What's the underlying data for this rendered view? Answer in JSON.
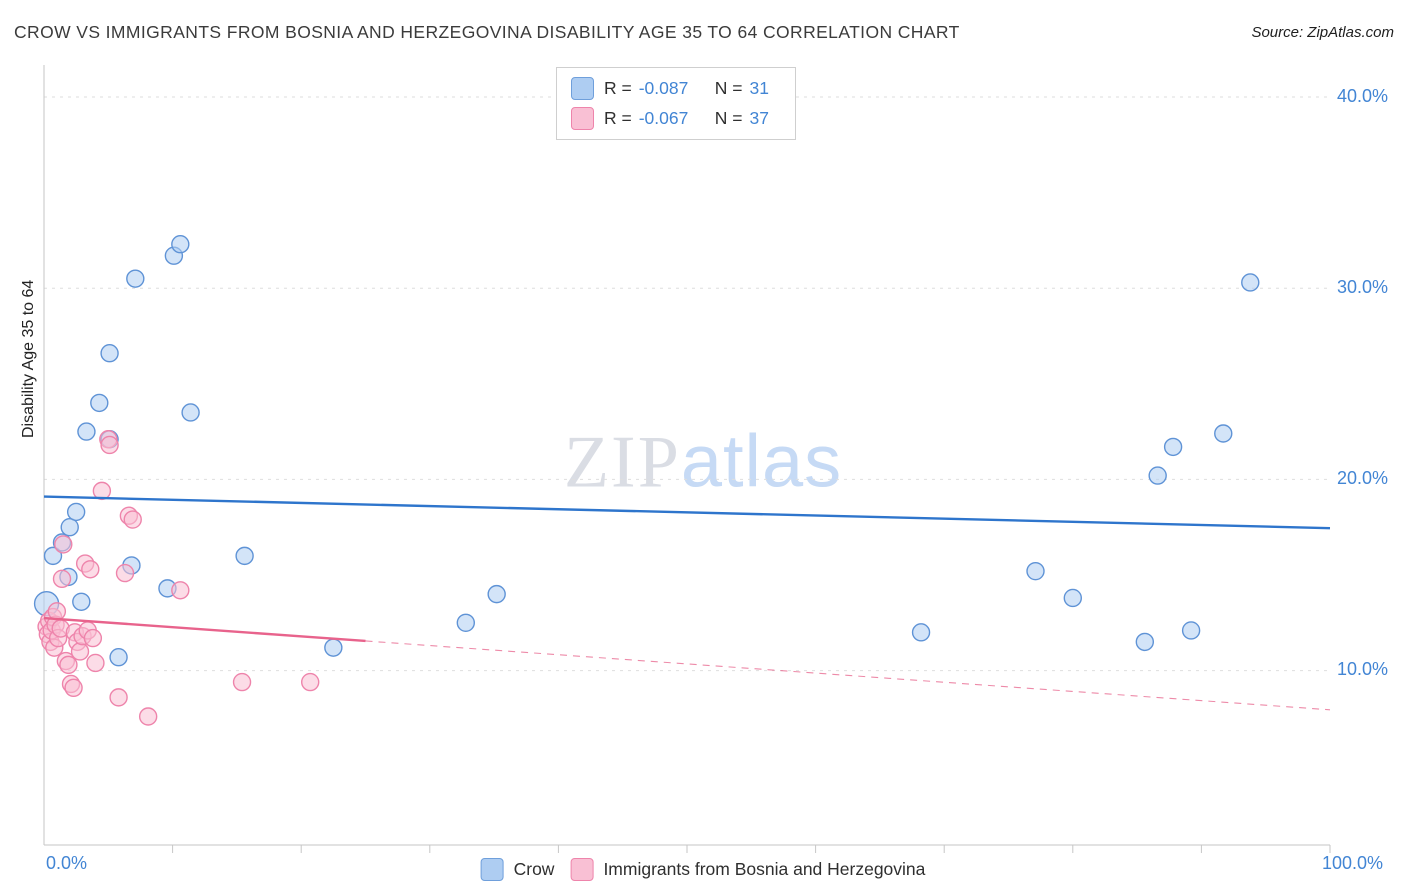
{
  "header": {
    "title": "CROW VS IMMIGRANTS FROM BOSNIA AND HERZEGOVINA DISABILITY AGE 35 TO 64 CORRELATION CHART",
    "source": "Source: ZipAtlas.com"
  },
  "watermark": {
    "zip": "ZIP",
    "atlas": "atlas"
  },
  "legend_box": {
    "series": [
      {
        "r_label": "R =",
        "r_value": "-0.087",
        "n_label": "N =",
        "n_value": "31",
        "swatch": {
          "fill": "#aecdf2",
          "stroke": "#6f9fdb"
        }
      },
      {
        "r_label": "R =",
        "r_value": "-0.067",
        "n_label": "N =",
        "n_value": "37",
        "swatch": {
          "fill": "#f9c0d4",
          "stroke": "#ee84ab"
        }
      }
    ]
  },
  "axes": {
    "y_label": "Disability Age 35 to 64",
    "y_ticks": [
      "40.0%",
      "30.0%",
      "20.0%",
      "10.0%"
    ],
    "x_min_label": "0.0%",
    "x_max_label": "100.0%"
  },
  "bottom_legend": {
    "items": [
      {
        "label": "Crow",
        "swatch": {
          "fill": "#aecdf2",
          "stroke": "#6f9fdb"
        }
      },
      {
        "label": "Immigrants from Bosnia and Herzegovina",
        "swatch": {
          "fill": "#f9c0d4",
          "stroke": "#ee84ab"
        }
      }
    ]
  },
  "chart_data": {
    "type": "scatter",
    "title": "Crow vs Immigrants from Bosnia and Herzegovina Disability Age 35 to 64",
    "xlabel_min": "0.0%",
    "xlabel_max": "100.0%",
    "ylabel": "Disability Age 35 to 64",
    "x_range": [
      0,
      100
    ],
    "y_range": [
      0,
      42
    ],
    "x_tick_step": 10,
    "grid_y_values": [
      10,
      20,
      30,
      40
    ],
    "grid_on": true,
    "legend_position": "bottom",
    "series": [
      {
        "name": "Crow",
        "r": -0.087,
        "n": 31,
        "marker_fill": "#aecdf2",
        "marker_stroke": "#5f93d6",
        "trend_color": "#2e75cc",
        "trend": {
          "x1": 0,
          "y1": 19.1,
          "x2": 100,
          "y2": 17.45
        },
        "points": [
          [
            0.2,
            13.5,
            12
          ],
          [
            0.7,
            16.0
          ],
          [
            1.4,
            16.7
          ],
          [
            1.9,
            14.9
          ],
          [
            2.0,
            17.5
          ],
          [
            2.5,
            18.3
          ],
          [
            2.9,
            13.6
          ],
          [
            3.3,
            22.5
          ],
          [
            4.3,
            24.0
          ],
          [
            5.1,
            26.6
          ],
          [
            5.1,
            22.1
          ],
          [
            5.8,
            10.7
          ],
          [
            6.8,
            15.5
          ],
          [
            7.1,
            30.5
          ],
          [
            9.6,
            14.3
          ],
          [
            10.1,
            31.7
          ],
          [
            10.6,
            32.3
          ],
          [
            11.4,
            23.5
          ],
          [
            15.6,
            16.0
          ],
          [
            22.5,
            11.2
          ],
          [
            32.8,
            12.5
          ],
          [
            35.2,
            14.0
          ],
          [
            68.2,
            12.0
          ],
          [
            77.1,
            15.2
          ],
          [
            80.0,
            13.8
          ],
          [
            85.6,
            11.5
          ],
          [
            86.6,
            20.2
          ],
          [
            87.8,
            21.7
          ],
          [
            89.2,
            12.1
          ],
          [
            91.7,
            22.4
          ],
          [
            93.8,
            30.3
          ]
        ]
      },
      {
        "name": "Immigrants from Bosnia and Herzegovina",
        "r": -0.067,
        "n": 37,
        "marker_fill": "#f9c0d4",
        "marker_stroke": "#ee84ab",
        "trend_color": "#e8638c",
        "trend": {
          "x1": 0,
          "y1": 12.75,
          "x2": 100,
          "y2": 7.95,
          "solid_until": 25
        },
        "points": [
          [
            0.2,
            12.3
          ],
          [
            0.3,
            11.9
          ],
          [
            0.4,
            12.6
          ],
          [
            0.5,
            11.5
          ],
          [
            0.6,
            12.1
          ],
          [
            0.7,
            12.8
          ],
          [
            0.8,
            11.2
          ],
          [
            0.9,
            12.4
          ],
          [
            1.0,
            13.1
          ],
          [
            1.1,
            11.7
          ],
          [
            1.3,
            12.2
          ],
          [
            1.4,
            14.8
          ],
          [
            1.5,
            16.6
          ],
          [
            1.7,
            10.5
          ],
          [
            1.9,
            10.3
          ],
          [
            2.1,
            9.3
          ],
          [
            2.3,
            9.1
          ],
          [
            2.4,
            12.0
          ],
          [
            2.6,
            11.5
          ],
          [
            2.8,
            11.0
          ],
          [
            3.0,
            11.8
          ],
          [
            3.2,
            15.6
          ],
          [
            3.4,
            12.1
          ],
          [
            3.6,
            15.3
          ],
          [
            3.8,
            11.7
          ],
          [
            4.0,
            10.4
          ],
          [
            4.5,
            19.4
          ],
          [
            5.0,
            22.1
          ],
          [
            5.1,
            21.8
          ],
          [
            5.8,
            8.6
          ],
          [
            6.3,
            15.1
          ],
          [
            6.6,
            18.1
          ],
          [
            6.9,
            17.9
          ],
          [
            8.1,
            7.6
          ],
          [
            10.6,
            14.2
          ],
          [
            15.4,
            9.4
          ],
          [
            20.7,
            9.4
          ]
        ]
      }
    ]
  }
}
